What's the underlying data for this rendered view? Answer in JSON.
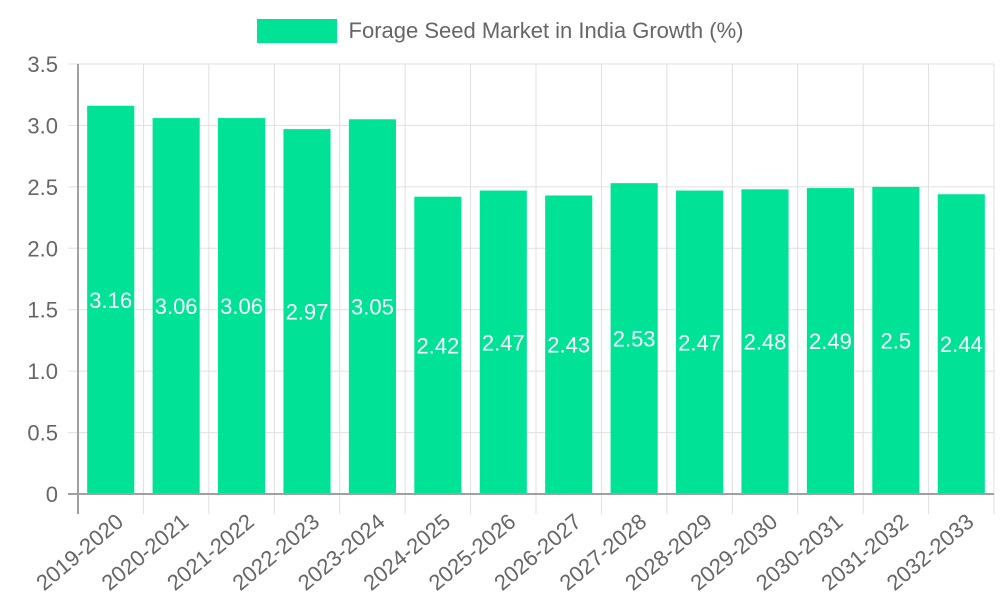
{
  "legend": {
    "label": "Forage Seed Market in India Growth (%)",
    "color": "#00e396"
  },
  "chart_data": {
    "type": "bar",
    "title": "",
    "xlabel": "",
    "ylabel": "",
    "categories": [
      "2019-2020",
      "2020-2021",
      "2021-2022",
      "2022-2023",
      "2023-2024",
      "2024-2025",
      "2025-2026",
      "2026-2027",
      "2027-2028",
      "2028-2029",
      "2029-2030",
      "2030-2031",
      "2031-2032",
      "2032-2033"
    ],
    "series": [
      {
        "name": "Forage Seed Market in India Growth (%)",
        "values": [
          3.16,
          3.06,
          3.06,
          2.97,
          3.05,
          2.42,
          2.47,
          2.43,
          2.53,
          2.47,
          2.48,
          2.49,
          2.5,
          2.44
        ],
        "color": "#00e396"
      }
    ],
    "data_labels": [
      "3.16",
      "3.06",
      "3.06",
      "2.97",
      "3.05",
      "2.42",
      "2.47",
      "2.43",
      "2.53",
      "2.47",
      "2.48",
      "2.49",
      "2.5",
      "2.44"
    ],
    "ylim": [
      0,
      3.5
    ],
    "yticks": [
      "0",
      "0.5",
      "1.0",
      "1.5",
      "2.0",
      "2.5",
      "3.0",
      "3.5"
    ],
    "grid": true,
    "legend_position": "top"
  }
}
